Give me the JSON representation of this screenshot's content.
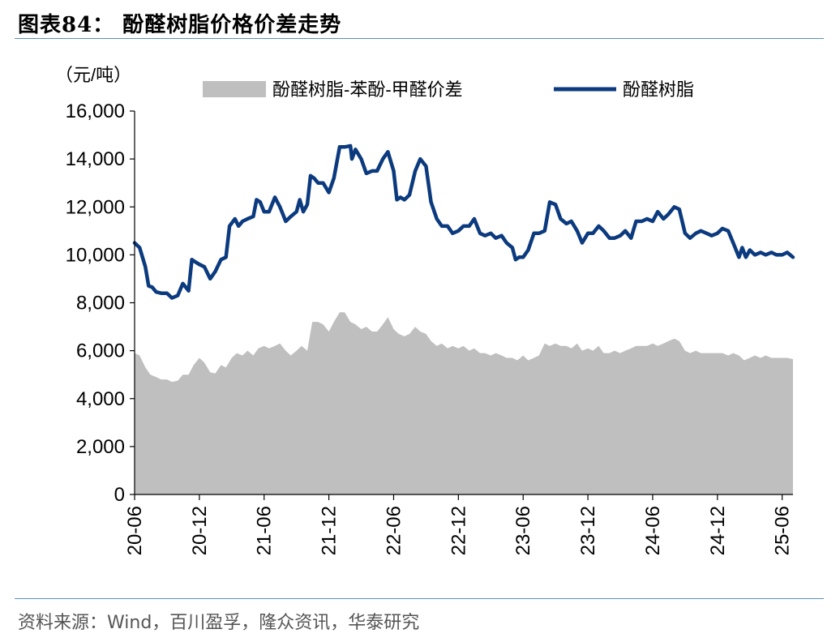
{
  "figure": {
    "title": "图表84：  酚醛树脂价格价差走势",
    "source": "资料来源：Wind，百川盈孚，隆众资讯，华泰研究"
  },
  "chart_data": {
    "type": "line",
    "unit_label": "（元/吨）",
    "ylim": [
      0,
      16000
    ],
    "y_ticks": [
      "0",
      "2,000",
      "4,000",
      "6,000",
      "8,000",
      "10,000",
      "12,000",
      "14,000",
      "16,000"
    ],
    "x_range": [
      "2020-06",
      "2025-07"
    ],
    "x_ticks": [
      "20-06",
      "20-12",
      "21-06",
      "21-12",
      "22-06",
      "22-12",
      "23-06",
      "23-12",
      "24-06",
      "24-12",
      "25-06"
    ],
    "legend_position": "top",
    "grid": false,
    "series": [
      {
        "name": "酚醛树脂-苯酚-甲醛价差",
        "kind": "area",
        "color": "#bfbfbf",
        "points": [
          [
            "2020-06-01",
            5900
          ],
          [
            "2020-06-15",
            5800
          ],
          [
            "2020-07-01",
            5300
          ],
          [
            "2020-07-15",
            5000
          ],
          [
            "2020-08-01",
            4900
          ],
          [
            "2020-08-15",
            4800
          ],
          [
            "2020-09-01",
            4800
          ],
          [
            "2020-09-15",
            4700
          ],
          [
            "2020-10-01",
            4750
          ],
          [
            "2020-10-15",
            5000
          ],
          [
            "2020-11-01",
            5000
          ],
          [
            "2020-11-15",
            5400
          ],
          [
            "2020-12-01",
            5700
          ],
          [
            "2020-12-15",
            5500
          ],
          [
            "2021-01-01",
            5100
          ],
          [
            "2021-01-15",
            5050
          ],
          [
            "2021-02-01",
            5400
          ],
          [
            "2021-02-15",
            5300
          ],
          [
            "2021-03-01",
            5700
          ],
          [
            "2021-03-15",
            5900
          ],
          [
            "2021-04-01",
            5800
          ],
          [
            "2021-04-15",
            6000
          ],
          [
            "2021-05-01",
            5800
          ],
          [
            "2021-05-15",
            6100
          ],
          [
            "2021-06-01",
            6200
          ],
          [
            "2021-06-15",
            6100
          ],
          [
            "2021-07-01",
            6200
          ],
          [
            "2021-07-15",
            6300
          ],
          [
            "2021-08-01",
            6000
          ],
          [
            "2021-08-15",
            5800
          ],
          [
            "2021-09-01",
            6000
          ],
          [
            "2021-09-15",
            6200
          ],
          [
            "2021-10-01",
            6000
          ],
          [
            "2021-10-15",
            7200
          ],
          [
            "2021-11-01",
            7200
          ],
          [
            "2021-11-15",
            7100
          ],
          [
            "2021-12-01",
            6800
          ],
          [
            "2021-12-15",
            7200
          ],
          [
            "2022-01-01",
            7600
          ],
          [
            "2022-01-15",
            7600
          ],
          [
            "2022-02-01",
            7200
          ],
          [
            "2022-02-15",
            7100
          ],
          [
            "2022-03-01",
            6900
          ],
          [
            "2022-03-15",
            7000
          ],
          [
            "2022-04-01",
            6800
          ],
          [
            "2022-04-15",
            6800
          ],
          [
            "2022-05-01",
            7100
          ],
          [
            "2022-05-15",
            7400
          ],
          [
            "2022-06-01",
            6900
          ],
          [
            "2022-06-15",
            6700
          ],
          [
            "2022-07-01",
            6600
          ],
          [
            "2022-07-15",
            6700
          ],
          [
            "2022-08-01",
            7000
          ],
          [
            "2022-08-15",
            6800
          ],
          [
            "2022-09-01",
            6700
          ],
          [
            "2022-09-15",
            6400
          ],
          [
            "2022-10-01",
            6200
          ],
          [
            "2022-10-15",
            6300
          ],
          [
            "2022-11-01",
            6100
          ],
          [
            "2022-11-15",
            6200
          ],
          [
            "2022-12-01",
            6100
          ],
          [
            "2022-12-15",
            6200
          ],
          [
            "2023-01-01",
            6000
          ],
          [
            "2023-01-15",
            6100
          ],
          [
            "2023-02-01",
            5900
          ],
          [
            "2023-02-15",
            5900
          ],
          [
            "2023-03-01",
            5800
          ],
          [
            "2023-03-15",
            5900
          ],
          [
            "2023-04-01",
            5800
          ],
          [
            "2023-04-15",
            5700
          ],
          [
            "2023-05-01",
            5700
          ],
          [
            "2023-05-15",
            5600
          ],
          [
            "2023-06-01",
            5800
          ],
          [
            "2023-06-15",
            5600
          ],
          [
            "2023-07-01",
            5700
          ],
          [
            "2023-07-15",
            5800
          ],
          [
            "2023-08-01",
            6300
          ],
          [
            "2023-08-15",
            6200
          ],
          [
            "2023-09-01",
            6300
          ],
          [
            "2023-09-15",
            6200
          ],
          [
            "2023-10-01",
            6200
          ],
          [
            "2023-10-15",
            6100
          ],
          [
            "2023-11-01",
            6300
          ],
          [
            "2023-11-15",
            6000
          ],
          [
            "2023-12-01",
            6100
          ],
          [
            "2023-12-15",
            6000
          ],
          [
            "2024-01-01",
            6200
          ],
          [
            "2024-01-15",
            5900
          ],
          [
            "2024-02-01",
            5900
          ],
          [
            "2024-02-15",
            6000
          ],
          [
            "2024-03-01",
            5900
          ],
          [
            "2024-03-15",
            6000
          ],
          [
            "2024-04-01",
            6100
          ],
          [
            "2024-04-15",
            6200
          ],
          [
            "2024-05-01",
            6200
          ],
          [
            "2024-05-15",
            6200
          ],
          [
            "2024-06-01",
            6300
          ],
          [
            "2024-06-15",
            6200
          ],
          [
            "2024-07-01",
            6300
          ],
          [
            "2024-07-15",
            6400
          ],
          [
            "2024-08-01",
            6500
          ],
          [
            "2024-08-15",
            6400
          ],
          [
            "2024-09-01",
            6000
          ],
          [
            "2024-09-15",
            5900
          ],
          [
            "2024-10-01",
            6000
          ],
          [
            "2024-10-15",
            5900
          ],
          [
            "2024-11-01",
            5900
          ],
          [
            "2024-11-15",
            5900
          ],
          [
            "2024-12-01",
            5900
          ],
          [
            "2024-12-15",
            5900
          ],
          [
            "2025-01-01",
            5800
          ],
          [
            "2025-01-15",
            5900
          ],
          [
            "2025-02-01",
            5800
          ],
          [
            "2025-02-15",
            5600
          ],
          [
            "2025-03-01",
            5700
          ],
          [
            "2025-03-15",
            5800
          ],
          [
            "2025-04-01",
            5700
          ],
          [
            "2025-04-15",
            5800
          ],
          [
            "2025-05-01",
            5700
          ],
          [
            "2025-05-15",
            5700
          ],
          [
            "2025-06-01",
            5700
          ],
          [
            "2025-06-15",
            5700
          ],
          [
            "2025-07-01",
            5650
          ]
        ]
      },
      {
        "name": "酚醛树脂",
        "kind": "line",
        "color": "#0b3a7e",
        "points": [
          [
            "2020-06-01",
            10500
          ],
          [
            "2020-06-15",
            10300
          ],
          [
            "2020-07-01",
            9500
          ],
          [
            "2020-07-10",
            8700
          ],
          [
            "2020-07-20",
            8650
          ],
          [
            "2020-08-01",
            8450
          ],
          [
            "2020-08-15",
            8400
          ],
          [
            "2020-09-01",
            8400
          ],
          [
            "2020-09-15",
            8200
          ],
          [
            "2020-10-01",
            8300
          ],
          [
            "2020-10-15",
            8800
          ],
          [
            "2020-11-01",
            8500
          ],
          [
            "2020-11-10",
            9800
          ],
          [
            "2020-11-20",
            9700
          ],
          [
            "2020-12-01",
            9600
          ],
          [
            "2020-12-15",
            9500
          ],
          [
            "2021-01-01",
            9000
          ],
          [
            "2021-01-15",
            9300
          ],
          [
            "2021-02-01",
            9800
          ],
          [
            "2021-02-15",
            9900
          ],
          [
            "2021-02-25",
            11200
          ],
          [
            "2021-03-10",
            11500
          ],
          [
            "2021-03-20",
            11200
          ],
          [
            "2021-04-01",
            11400
          ],
          [
            "2021-04-15",
            11500
          ],
          [
            "2021-05-01",
            11600
          ],
          [
            "2021-05-10",
            12300
          ],
          [
            "2021-05-20",
            12200
          ],
          [
            "2021-06-01",
            11800
          ],
          [
            "2021-06-15",
            11800
          ],
          [
            "2021-07-01",
            12400
          ],
          [
            "2021-07-15",
            12000
          ],
          [
            "2021-08-01",
            11400
          ],
          [
            "2021-08-15",
            11600
          ],
          [
            "2021-09-01",
            11800
          ],
          [
            "2021-09-10",
            12300
          ],
          [
            "2021-09-20",
            11800
          ],
          [
            "2021-10-01",
            12100
          ],
          [
            "2021-10-10",
            13300
          ],
          [
            "2021-10-20",
            13200
          ],
          [
            "2021-11-01",
            13000
          ],
          [
            "2021-11-15",
            13000
          ],
          [
            "2021-12-01",
            12600
          ],
          [
            "2021-12-15",
            13200
          ],
          [
            "2022-01-01",
            14500
          ],
          [
            "2022-01-15",
            14500
          ],
          [
            "2022-02-01",
            14550
          ],
          [
            "2022-02-05",
            14000
          ],
          [
            "2022-02-15",
            14400
          ],
          [
            "2022-03-01",
            14000
          ],
          [
            "2022-03-15",
            13400
          ],
          [
            "2022-04-01",
            13500
          ],
          [
            "2022-04-15",
            13500
          ],
          [
            "2022-05-01",
            14000
          ],
          [
            "2022-05-15",
            14300
          ],
          [
            "2022-06-01",
            13500
          ],
          [
            "2022-06-10",
            12300
          ],
          [
            "2022-06-20",
            12400
          ],
          [
            "2022-07-01",
            12300
          ],
          [
            "2022-07-15",
            12500
          ],
          [
            "2022-08-01",
            13500
          ],
          [
            "2022-08-15",
            14000
          ],
          [
            "2022-09-01",
            13700
          ],
          [
            "2022-09-15",
            12200
          ],
          [
            "2022-10-01",
            11500
          ],
          [
            "2022-10-15",
            11200
          ],
          [
            "2022-11-01",
            11200
          ],
          [
            "2022-11-15",
            10900
          ],
          [
            "2022-12-01",
            11000
          ],
          [
            "2022-12-15",
            11200
          ],
          [
            "2023-01-01",
            11200
          ],
          [
            "2023-01-15",
            11500
          ],
          [
            "2023-02-01",
            10900
          ],
          [
            "2023-02-15",
            10800
          ],
          [
            "2023-03-01",
            10900
          ],
          [
            "2023-03-15",
            10700
          ],
          [
            "2023-04-01",
            10800
          ],
          [
            "2023-04-15",
            10500
          ],
          [
            "2023-05-01",
            10300
          ],
          [
            "2023-05-10",
            9800
          ],
          [
            "2023-05-20",
            9900
          ],
          [
            "2023-06-01",
            9900
          ],
          [
            "2023-06-15",
            10200
          ],
          [
            "2023-07-01",
            10900
          ],
          [
            "2023-07-15",
            10900
          ],
          [
            "2023-08-01",
            11000
          ],
          [
            "2023-08-15",
            12200
          ],
          [
            "2023-09-01",
            12100
          ],
          [
            "2023-09-15",
            11500
          ],
          [
            "2023-10-01",
            11300
          ],
          [
            "2023-10-15",
            11400
          ],
          [
            "2023-11-01",
            11000
          ],
          [
            "2023-11-15",
            10500
          ],
          [
            "2023-12-01",
            10900
          ],
          [
            "2023-12-15",
            10900
          ],
          [
            "2024-01-01",
            11200
          ],
          [
            "2024-01-15",
            11000
          ],
          [
            "2024-02-01",
            10700
          ],
          [
            "2024-02-15",
            10700
          ],
          [
            "2024-03-01",
            10800
          ],
          [
            "2024-03-15",
            11000
          ],
          [
            "2024-04-01",
            10700
          ],
          [
            "2024-04-15",
            11400
          ],
          [
            "2024-05-01",
            11400
          ],
          [
            "2024-05-15",
            11500
          ],
          [
            "2024-06-01",
            11400
          ],
          [
            "2024-06-15",
            11800
          ],
          [
            "2024-07-01",
            11500
          ],
          [
            "2024-07-15",
            11700
          ],
          [
            "2024-08-01",
            12000
          ],
          [
            "2024-08-15",
            11900
          ],
          [
            "2024-09-01",
            10900
          ],
          [
            "2024-09-15",
            10700
          ],
          [
            "2024-10-01",
            10900
          ],
          [
            "2024-10-15",
            11000
          ],
          [
            "2024-11-01",
            10900
          ],
          [
            "2024-11-15",
            10800
          ],
          [
            "2024-12-01",
            10900
          ],
          [
            "2024-12-15",
            11100
          ],
          [
            "2025-01-01",
            11000
          ],
          [
            "2025-01-15",
            10500
          ],
          [
            "2025-02-01",
            9900
          ],
          [
            "2025-02-10",
            10300
          ],
          [
            "2025-02-20",
            9900
          ],
          [
            "2025-03-01",
            10200
          ],
          [
            "2025-03-15",
            10000
          ],
          [
            "2025-04-01",
            10100
          ],
          [
            "2025-04-15",
            10000
          ],
          [
            "2025-05-01",
            10100
          ],
          [
            "2025-05-15",
            10000
          ],
          [
            "2025-06-01",
            10000
          ],
          [
            "2025-06-15",
            10100
          ],
          [
            "2025-07-01",
            9900
          ]
        ]
      }
    ]
  }
}
